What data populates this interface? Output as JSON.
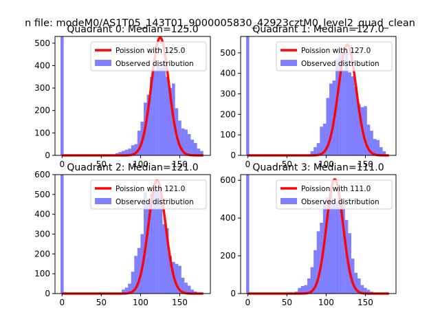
{
  "figure": {
    "suptitle": "n file: modeM0/AS1T05_143T01_9000005830_42923cztM0_level2_quad_clean"
  },
  "colors": {
    "hist": "#0000ff",
    "poisson": "#ff0000"
  },
  "chart_data": [
    {
      "type": "bar",
      "title": "Quadrant 0: Median=125.0",
      "xlim": [
        -9,
        189
      ],
      "ylim": [
        0,
        530
      ],
      "xticks": [
        0,
        50,
        100,
        150
      ],
      "yticks": [
        0,
        100,
        200,
        300,
        400,
        500
      ],
      "legend": [
        "Poission with 125.0",
        "Observed distribution"
      ],
      "legend_loc": "upper right",
      "median": 125.0,
      "peak_scale": 525,
      "hist": {
        "bins": [
          [
            -2,
            2
          ],
          [
            68,
            72
          ],
          [
            72,
            76
          ],
          [
            76,
            80
          ],
          [
            80,
            84
          ],
          [
            84,
            88
          ],
          [
            88,
            92
          ],
          [
            92,
            96
          ],
          [
            96,
            100
          ],
          [
            100,
            104
          ],
          [
            104,
            108
          ],
          [
            108,
            112
          ],
          [
            112,
            116
          ],
          [
            116,
            120
          ],
          [
            120,
            124
          ],
          [
            124,
            128
          ],
          [
            128,
            132
          ],
          [
            132,
            136
          ],
          [
            136,
            140
          ],
          [
            140,
            144
          ],
          [
            144,
            148
          ],
          [
            148,
            152
          ],
          [
            152,
            156
          ],
          [
            156,
            160
          ],
          [
            160,
            164
          ],
          [
            164,
            168
          ],
          [
            168,
            172
          ],
          [
            172,
            176
          ],
          [
            176,
            180
          ]
        ],
        "counts": [
          530,
          10,
          15,
          20,
          25,
          30,
          45,
          50,
          110,
          150,
          235,
          270,
          350,
          380,
          400,
          390,
          415,
          350,
          300,
          320,
          210,
          155,
          120,
          115,
          95,
          70,
          55,
          30,
          20
        ]
      }
    },
    {
      "type": "bar",
      "title": "Quadrant 1: Median=127.0",
      "xlim": [
        -9,
        189
      ],
      "ylim": [
        0,
        580
      ],
      "xticks": [
        0,
        50,
        100,
        150
      ],
      "yticks": [
        0,
        100,
        200,
        300,
        400,
        500
      ],
      "legend": [
        "Poission with 127.0",
        "Observed distribution"
      ],
      "legend_loc": "upper right",
      "median": 127.0,
      "peak_scale": 540,
      "hist": {
        "bins": [
          [
            -2,
            2
          ],
          [
            80,
            84
          ],
          [
            84,
            88
          ],
          [
            88,
            92
          ],
          [
            92,
            96
          ],
          [
            96,
            100
          ],
          [
            100,
            104
          ],
          [
            104,
            108
          ],
          [
            108,
            112
          ],
          [
            112,
            116
          ],
          [
            116,
            120
          ],
          [
            120,
            124
          ],
          [
            124,
            128
          ],
          [
            128,
            132
          ],
          [
            132,
            136
          ],
          [
            136,
            140
          ],
          [
            140,
            144
          ],
          [
            144,
            148
          ],
          [
            148,
            152
          ],
          [
            152,
            156
          ],
          [
            156,
            160
          ],
          [
            160,
            164
          ],
          [
            164,
            168
          ],
          [
            168,
            172
          ],
          [
            172,
            176
          ]
        ],
        "counts": [
          580,
          20,
          40,
          60,
          140,
          155,
          280,
          350,
          365,
          470,
          515,
          420,
          505,
          405,
          385,
          335,
          250,
          235,
          240,
          150,
          120,
          80,
          75,
          40,
          20
        ]
      }
    },
    {
      "type": "bar",
      "title": "Quadrant 2: Median=121.0",
      "xlim": [
        -9,
        189
      ],
      "ylim": [
        0,
        600
      ],
      "xticks": [
        0,
        50,
        100,
        150
      ],
      "yticks": [
        0,
        100,
        200,
        300,
        400,
        500,
        600
      ],
      "legend": [
        "Poission with 121.0",
        "Observed distribution"
      ],
      "legend_loc": "upper right",
      "median": 121.0,
      "peak_scale": 570,
      "hist": {
        "bins": [
          [
            -2,
            2
          ],
          [
            76,
            80
          ],
          [
            80,
            84
          ],
          [
            84,
            88
          ],
          [
            88,
            92
          ],
          [
            92,
            96
          ],
          [
            96,
            100
          ],
          [
            100,
            104
          ],
          [
            104,
            108
          ],
          [
            108,
            112
          ],
          [
            112,
            116
          ],
          [
            116,
            120
          ],
          [
            120,
            124
          ],
          [
            124,
            128
          ],
          [
            128,
            132
          ],
          [
            132,
            136
          ],
          [
            136,
            140
          ],
          [
            140,
            144
          ],
          [
            144,
            148
          ],
          [
            148,
            152
          ],
          [
            152,
            156
          ],
          [
            156,
            160
          ],
          [
            160,
            164
          ],
          [
            164,
            168
          ],
          [
            168,
            172
          ],
          [
            172,
            176
          ]
        ],
        "counts": [
          600,
          20,
          30,
          50,
          110,
          190,
          230,
          300,
          510,
          455,
          505,
          555,
          520,
          500,
          350,
          330,
          190,
          160,
          150,
          140,
          80,
          55,
          40,
          20,
          10,
          5
        ]
      }
    },
    {
      "type": "bar",
      "title": "Quadrant 3: Median=111.0",
      "xlim": [
        -9,
        189
      ],
      "ylim": [
        0,
        630
      ],
      "xticks": [
        0,
        50,
        100,
        150
      ],
      "yticks": [
        0,
        200,
        400,
        600
      ],
      "legend": [
        "Poission with 111.0",
        "Observed distribution"
      ],
      "legend_loc": "upper right",
      "median": 111.0,
      "peak_scale": 605,
      "hist": {
        "bins": [
          [
            -2,
            2
          ],
          [
            60,
            64
          ],
          [
            64,
            68
          ],
          [
            68,
            72
          ],
          [
            72,
            76
          ],
          [
            76,
            80
          ],
          [
            80,
            84
          ],
          [
            84,
            88
          ],
          [
            88,
            92
          ],
          [
            92,
            96
          ],
          [
            96,
            100
          ],
          [
            100,
            104
          ],
          [
            104,
            108
          ],
          [
            108,
            112
          ],
          [
            112,
            116
          ],
          [
            116,
            120
          ],
          [
            120,
            124
          ],
          [
            124,
            128
          ],
          [
            128,
            132
          ],
          [
            132,
            136
          ],
          [
            136,
            140
          ],
          [
            140,
            144
          ],
          [
            144,
            148
          ],
          [
            148,
            152
          ],
          [
            152,
            156
          ],
          [
            156,
            160
          ],
          [
            160,
            164
          ]
        ],
        "counts": [
          630,
          10,
          30,
          40,
          45,
          80,
          140,
          230,
          330,
          375,
          490,
          510,
          560,
          470,
          490,
          510,
          470,
          390,
          320,
          185,
          110,
          80,
          45,
          30,
          20,
          10,
          5
        ]
      }
    }
  ]
}
